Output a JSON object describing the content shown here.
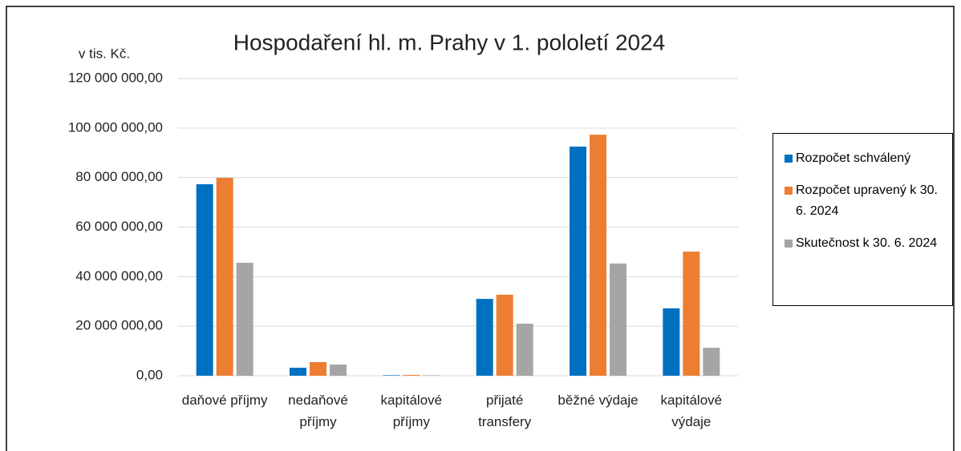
{
  "chart_data": {
    "type": "bar",
    "title": "Hospodaření hl. m. Prahy v 1. pololetí 2024",
    "y_label": "v tis. Kč.",
    "categories": [
      "daňové příjmy",
      "nedaňové příjmy",
      "kapitálové příjmy",
      "přijaté transfery",
      "běžné výdaje",
      "kapitálové výdaje"
    ],
    "series": [
      {
        "name": "Rozpočet schválený",
        "color": "#0070c0",
        "values": [
          77300000,
          3200000,
          200000,
          31000000,
          92500000,
          27200000
        ]
      },
      {
        "name": "Rozpočet upravený k 30. 6. 2024",
        "color": "#ed7d31",
        "values": [
          79900000,
          5500000,
          300000,
          32700000,
          97300000,
          50100000
        ]
      },
      {
        "name": "Skutečnost k 30. 6. 2024",
        "color": "#a5a5a5",
        "values": [
          45600000,
          4500000,
          200000,
          21000000,
          45300000,
          11300000
        ]
      }
    ],
    "ylim": [
      0,
      120000000
    ],
    "yticks": [
      {
        "value": 0,
        "label": "0,00"
      },
      {
        "value": 20000000,
        "label": "20 000 000,00"
      },
      {
        "value": 40000000,
        "label": "40 000 000,00"
      },
      {
        "value": 60000000,
        "label": "60 000 000,00"
      },
      {
        "value": 80000000,
        "label": "80 000 000,00"
      },
      {
        "value": 100000000,
        "label": "100 000 000,00"
      },
      {
        "value": 120000000,
        "label": "120 000 000,00"
      }
    ],
    "grid": true,
    "legend": "right"
  }
}
